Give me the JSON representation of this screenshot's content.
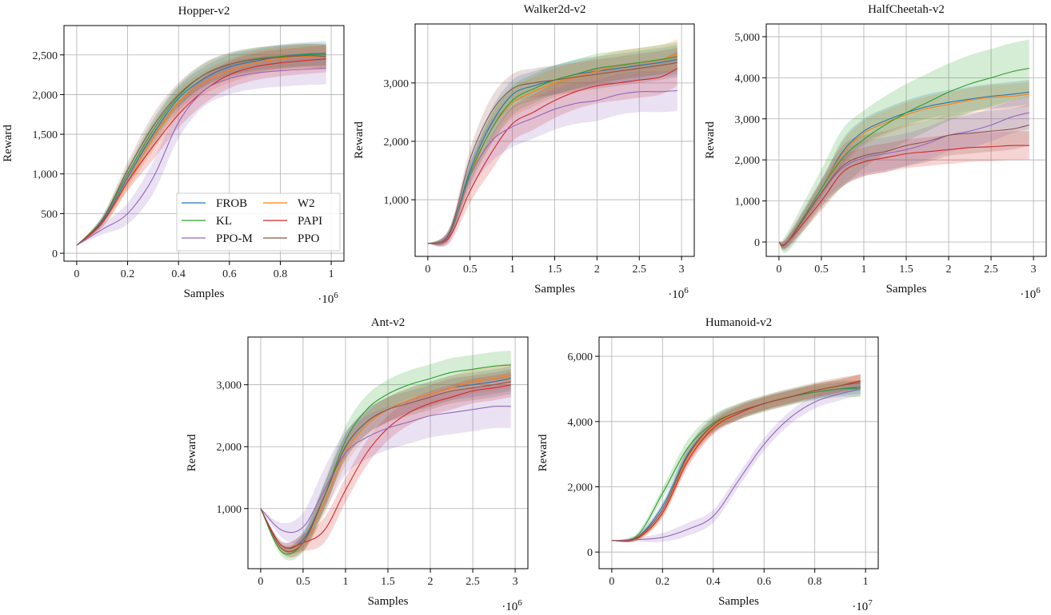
{
  "colors": {
    "FROB": "#1f77b4",
    "W2": "#ff7f0e",
    "KL": "#2ca02c",
    "PAPI": "#d62728",
    "PPO-M": "#9467bd",
    "PPO": "#8c564b"
  },
  "legend": {
    "location": "lower-right",
    "chart": "Hopper-v2",
    "entries": [
      "FROB",
      "W2",
      "KL",
      "PAPI",
      "PPO-M",
      "PPO"
    ]
  },
  "chart_data": [
    {
      "type": "line",
      "title": "Hopper-v2",
      "xlabel": "Samples",
      "ylabel": "Reward",
      "x_scale_exponent": 6,
      "grid": true,
      "xlim": [
        -0.05,
        1.05
      ],
      "ylim": [
        -100,
        2870
      ],
      "xticks": [
        0,
        0.2,
        0.4,
        0.6,
        0.8,
        1
      ],
      "xtick_labels": [
        "0",
        "0.2",
        "0.4",
        "0.6",
        "0.8",
        "1"
      ],
      "yticks": [
        0,
        500,
        1000,
        1500,
        2000,
        2500
      ],
      "ytick_labels": [
        "0",
        "500",
        "1,000",
        "1,500",
        "2,000",
        "2,500"
      ],
      "x": [
        0,
        0.1,
        0.2,
        0.3,
        0.4,
        0.5,
        0.6,
        0.7,
        0.8,
        0.9,
        0.98
      ],
      "series": [
        {
          "name": "FROB",
          "values": [
            100,
            400,
            950,
            1500,
            1950,
            2200,
            2350,
            2420,
            2480,
            2510,
            2520
          ],
          "std": 150
        },
        {
          "name": "W2",
          "values": [
            100,
            380,
            900,
            1450,
            1900,
            2150,
            2300,
            2400,
            2450,
            2480,
            2480
          ],
          "std": 150
        },
        {
          "name": "KL",
          "values": [
            100,
            420,
            1000,
            1550,
            1980,
            2250,
            2380,
            2450,
            2480,
            2500,
            2500
          ],
          "std": 140
        },
        {
          "name": "PAPI",
          "values": [
            100,
            380,
            900,
            1350,
            1750,
            2050,
            2250,
            2350,
            2400,
            2430,
            2450
          ],
          "std": 170
        },
        {
          "name": "PPO-M",
          "values": [
            100,
            300,
            500,
            950,
            1650,
            2050,
            2200,
            2270,
            2300,
            2320,
            2330
          ],
          "std": 200
        },
        {
          "name": "PPO",
          "values": [
            100,
            420,
            1050,
            1600,
            2000,
            2250,
            2380,
            2440,
            2470,
            2490,
            2480
          ],
          "std": 150
        }
      ]
    },
    {
      "type": "line",
      "title": "Walker2d-v2",
      "xlabel": "Samples",
      "ylabel": "Reward",
      "x_scale_exponent": 6,
      "grid": true,
      "xlim": [
        -0.15,
        3.15
      ],
      "ylim": [
        30,
        4010
      ],
      "xticks": [
        0,
        0.5,
        1,
        1.5,
        2,
        2.5,
        3
      ],
      "xtick_labels": [
        "0",
        "0.5",
        "1",
        "1.5",
        "2",
        "2.5",
        "3"
      ],
      "yticks": [
        1000,
        2000,
        3000
      ],
      "ytick_labels": [
        "1,000",
        "2,000",
        "3,000"
      ],
      "x": [
        0,
        0.25,
        0.5,
        0.75,
        1,
        1.25,
        1.5,
        1.75,
        2,
        2.25,
        2.5,
        2.75,
        2.95
      ],
      "series": [
        {
          "name": "FROB",
          "values": [
            250,
            400,
            1500,
            2300,
            2800,
            2950,
            3050,
            3150,
            3200,
            3250,
            3300,
            3350,
            3400
          ],
          "std": 250
        },
        {
          "name": "W2",
          "values": [
            250,
            380,
            1400,
            2200,
            2650,
            2850,
            3000,
            3100,
            3200,
            3300,
            3350,
            3400,
            3500
          ],
          "std": 250
        },
        {
          "name": "KL",
          "values": [
            250,
            400,
            1450,
            2200,
            2700,
            2900,
            3050,
            3150,
            3250,
            3300,
            3350,
            3400,
            3450
          ],
          "std": 250
        },
        {
          "name": "PAPI",
          "values": [
            250,
            350,
            1150,
            1800,
            2300,
            2500,
            2700,
            2850,
            2950,
            3000,
            3050,
            3100,
            3250
          ],
          "std": 300
        },
        {
          "name": "PPO-M",
          "values": [
            250,
            380,
            1400,
            2000,
            2250,
            2400,
            2550,
            2650,
            2700,
            2800,
            2850,
            2850,
            2870
          ],
          "std": 350
        },
        {
          "name": "PPO",
          "values": [
            250,
            420,
            1700,
            2500,
            2900,
            3000,
            3050,
            3100,
            3150,
            3200,
            3250,
            3300,
            3350
          ],
          "std": 250
        }
      ]
    },
    {
      "type": "line",
      "title": "HalfCheetah-v2",
      "xlabel": "Samples",
      "ylabel": "Reward",
      "x_scale_exponent": 6,
      "grid": true,
      "xlim": [
        -0.15,
        3.15
      ],
      "ylim": [
        -350,
        5310
      ],
      "xticks": [
        0,
        0.5,
        1,
        1.5,
        2,
        2.5,
        3
      ],
      "xtick_labels": [
        "0",
        "0.5",
        "1",
        "1.5",
        "2",
        "2.5",
        "3"
      ],
      "yticks": [
        0,
        1000,
        2000,
        3000,
        4000,
        5000
      ],
      "ytick_labels": [
        "0",
        "1,000",
        "2,000",
        "3,000",
        "4,000",
        "5,000"
      ],
      "x": [
        0,
        0.1,
        0.5,
        0.75,
        1,
        1.25,
        1.5,
        1.75,
        2,
        2.25,
        2.5,
        2.75,
        2.95
      ],
      "series": [
        {
          "name": "FROB",
          "values": [
            0,
            0,
            1300,
            2200,
            2700,
            2950,
            3150,
            3300,
            3400,
            3480,
            3550,
            3600,
            3650
          ],
          "std": 300
        },
        {
          "name": "W2",
          "values": [
            0,
            0,
            1300,
            2150,
            2650,
            2900,
            3100,
            3250,
            3350,
            3450,
            3520,
            3550,
            3600
          ],
          "std": 300
        },
        {
          "name": "KL",
          "values": [
            0,
            0,
            1300,
            2050,
            2500,
            2850,
            3150,
            3400,
            3650,
            3850,
            4000,
            4150,
            4230
          ],
          "std": 700
        },
        {
          "name": "PAPI",
          "values": [
            0,
            0,
            1000,
            1700,
            1950,
            2050,
            2150,
            2200,
            2250,
            2300,
            2320,
            2350,
            2350
          ],
          "std": 350
        },
        {
          "name": "PPO-M",
          "values": [
            0,
            0,
            1200,
            1800,
            2050,
            2150,
            2250,
            2400,
            2600,
            2700,
            2850,
            3050,
            3150
          ],
          "std": 400
        },
        {
          "name": "PPO",
          "values": [
            0,
            0,
            1200,
            1850,
            2100,
            2200,
            2350,
            2450,
            2600,
            2650,
            2700,
            2750,
            2850
          ],
          "std": 500
        }
      ]
    },
    {
      "type": "line",
      "title": "Ant-v2",
      "xlabel": "Samples",
      "ylabel": "Reward",
      "x_scale_exponent": 6,
      "grid": true,
      "xlim": [
        -0.15,
        3.15
      ],
      "ylim": [
        30,
        3770
      ],
      "xticks": [
        0,
        0.5,
        1,
        1.5,
        2,
        2.5,
        3
      ],
      "xtick_labels": [
        "0",
        "0.5",
        "1",
        "1.5",
        "2",
        "2.5",
        "3"
      ],
      "yticks": [
        1000,
        2000,
        3000
      ],
      "ytick_labels": [
        "1,000",
        "2,000",
        "3,000"
      ],
      "x": [
        0,
        0.25,
        0.5,
        0.75,
        1,
        1.25,
        1.5,
        1.75,
        2,
        2.25,
        2.5,
        2.75,
        2.95
      ],
      "series": [
        {
          "name": "FROB",
          "values": [
            1000,
            400,
            500,
            1200,
            2000,
            2400,
            2600,
            2750,
            2850,
            2950,
            3000,
            3050,
            3100
          ],
          "std": 200
        },
        {
          "name": "W2",
          "values": [
            1000,
            350,
            450,
            1100,
            1900,
            2350,
            2600,
            2750,
            2850,
            2950,
            3050,
            3100,
            3150
          ],
          "std": 200
        },
        {
          "name": "KL",
          "values": [
            1000,
            300,
            450,
            1200,
            2100,
            2600,
            2850,
            3000,
            3100,
            3200,
            3250,
            3300,
            3320
          ],
          "std": 230
        },
        {
          "name": "PAPI",
          "values": [
            1000,
            400,
            450,
            650,
            1300,
            1900,
            2300,
            2550,
            2700,
            2800,
            2900,
            2950,
            3000
          ],
          "std": 200
        },
        {
          "name": "PPO-M",
          "values": [
            1000,
            650,
            700,
            1300,
            1900,
            2150,
            2300,
            2400,
            2500,
            2550,
            2600,
            2650,
            2650
          ],
          "std": 350
        },
        {
          "name": "PPO",
          "values": [
            1000,
            350,
            450,
            1200,
            2000,
            2400,
            2600,
            2700,
            2800,
            2900,
            2950,
            3000,
            3050
          ],
          "std": 200
        }
      ]
    },
    {
      "type": "line",
      "title": "Humanoid-v2",
      "xlabel": "Samples",
      "ylabel": "Reward",
      "x_scale_exponent": 7,
      "grid": true,
      "xlim": [
        -0.05,
        1.05
      ],
      "ylim": [
        -510,
        6590
      ],
      "xticks": [
        0,
        0.2,
        0.4,
        0.6,
        0.8,
        1
      ],
      "xtick_labels": [
        "0",
        "0.2",
        "0.4",
        "0.6",
        "0.8",
        "1"
      ],
      "yticks": [
        0,
        2000,
        4000,
        6000
      ],
      "ytick_labels": [
        "0",
        "2,000",
        "4,000",
        "6,000"
      ],
      "x": [
        0,
        0.1,
        0.2,
        0.3,
        0.4,
        0.5,
        0.6,
        0.7,
        0.8,
        0.9,
        0.98
      ],
      "series": [
        {
          "name": "FROB",
          "values": [
            350,
            450,
            1400,
            3000,
            3900,
            4300,
            4550,
            4750,
            4900,
            5000,
            5050
          ],
          "std": 200
        },
        {
          "name": "W2",
          "values": [
            350,
            420,
            1200,
            2900,
            3850,
            4300,
            4550,
            4750,
            4950,
            5100,
            5250
          ],
          "std": 200
        },
        {
          "name": "KL",
          "values": [
            350,
            500,
            1800,
            3200,
            3950,
            4300,
            4550,
            4750,
            4900,
            5000,
            5000
          ],
          "std": 250
        },
        {
          "name": "PAPI",
          "values": [
            350,
            420,
            1200,
            2800,
            3800,
            4250,
            4550,
            4750,
            4950,
            5100,
            5250
          ],
          "std": 200
        },
        {
          "name": "PPO-M",
          "values": [
            350,
            380,
            450,
            700,
            1100,
            2200,
            3300,
            4100,
            4600,
            4850,
            5000
          ],
          "std": 200
        },
        {
          "name": "PPO",
          "values": [
            350,
            450,
            1300,
            2950,
            3900,
            4300,
            4550,
            4750,
            4950,
            5100,
            5200
          ],
          "std": 250
        }
      ]
    }
  ]
}
